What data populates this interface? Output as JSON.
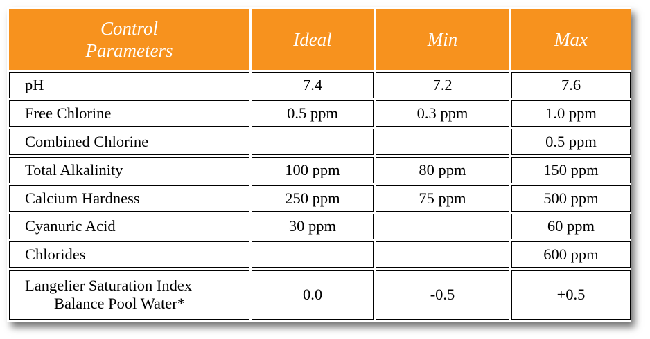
{
  "header": {
    "param_line1": "Control",
    "param_line2": "Parameters",
    "ideal": "Ideal",
    "min": "Min",
    "max": "Max"
  },
  "rows": [
    {
      "param": "pH",
      "ideal": "7.4",
      "min": "7.2",
      "max": "7.6"
    },
    {
      "param": "Free Chlorine",
      "ideal": "0.5 ppm",
      "min": "0.3 ppm",
      "max": "1.0 ppm"
    },
    {
      "param": "Combined Chlorine",
      "ideal": "",
      "min": "",
      "max": "0.5 ppm"
    },
    {
      "param": "Total Alkalinity",
      "ideal": "100 ppm",
      "min": "80 ppm",
      "max": "150 ppm"
    },
    {
      "param": "Calcium Hardness",
      "ideal": "250 ppm",
      "min": "75 ppm",
      "max": "500 ppm"
    },
    {
      "param": "Cyanuric Acid",
      "ideal": "30 ppm",
      "min": "",
      "max": "60 ppm"
    },
    {
      "param": "Chlorides",
      "ideal": "",
      "min": "",
      "max": "600 ppm"
    },
    {
      "param_line1": "Langelier Saturation Index",
      "param_line2": "Balance Pool Water*",
      "ideal": "0.0",
      "min": "-0.5",
      "max": "+0.5"
    }
  ],
  "colors": {
    "header_bg": "#f7921e",
    "header_text": "#ffffff",
    "border": "#000000"
  }
}
